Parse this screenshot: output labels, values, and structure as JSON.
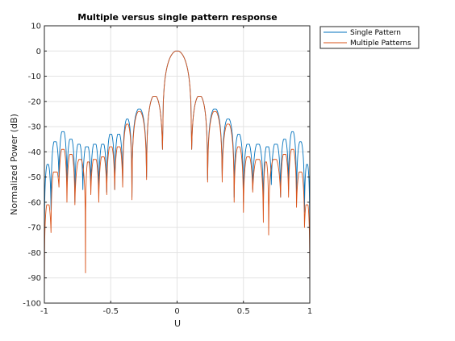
{
  "chart_data": {
    "type": "line",
    "title": "Multiple versus single pattern response",
    "xlabel": "U",
    "ylabel": "Normalized Power (dB)",
    "xlim": [
      -1,
      1
    ],
    "ylim": [
      -100,
      10
    ],
    "xticks": [
      -1,
      -0.5,
      0,
      0.5,
      1
    ],
    "xtick_labels": [
      "-1",
      "-0.5",
      "0",
      "0.5",
      "1"
    ],
    "yticks": [
      10,
      0,
      -10,
      -20,
      -30,
      -40,
      -50,
      -60,
      -70,
      -80,
      -90,
      -100
    ],
    "ytick_labels": [
      "10",
      "0",
      "-10",
      "-20",
      "-30",
      "-40",
      "-50",
      "-60",
      "-70",
      "-80",
      "-90",
      "-100"
    ],
    "grid": true,
    "legend_position": "outside-top-right",
    "series": [
      {
        "name": "Single Pattern",
        "color": "#0072BD",
        "nulls": [
          -1.0,
          -0.95,
          -0.89,
          -0.83,
          -0.77,
          -0.71,
          -0.65,
          -0.59,
          -0.53,
          -0.47,
          -0.41,
          -0.34,
          -0.23,
          -0.11,
          0.11,
          0.23,
          0.34,
          0.43,
          0.5,
          0.57,
          0.65,
          0.71,
          0.78,
          0.84,
          0.9,
          0.96,
          1.0
        ],
        "null_depths": [
          -100,
          -63,
          -50,
          -52,
          -60,
          -55,
          -53,
          -57,
          -56,
          -55,
          -53,
          -58,
          -50,
          -39,
          -39,
          -51,
          -50,
          -58,
          -60,
          -55,
          -63,
          -53,
          -58,
          -55,
          -60,
          -64,
          -100
        ],
        "peaks": [
          0.0,
          0.17,
          0.28,
          0.38,
          0.46,
          0.54,
          0.61,
          0.68,
          0.74,
          0.81,
          0.87,
          0.93,
          0.98
        ],
        "peak_levels": [
          0,
          -18,
          -23,
          -27,
          -33,
          -37,
          -37,
          -38,
          -37,
          -35,
          -32,
          -36,
          -45
        ]
      },
      {
        "name": "Multiple Patterns",
        "color": "#D95319",
        "nulls": [
          -1.0,
          -0.95,
          -0.89,
          -0.83,
          -0.77,
          -0.69,
          -0.65,
          -0.59,
          -0.53,
          -0.47,
          -0.41,
          -0.34,
          -0.23,
          -0.11,
          0.11,
          0.23,
          0.34,
          0.43,
          0.5,
          0.57,
          0.65,
          0.69,
          0.78,
          0.84,
          0.9,
          0.96,
          1.0
        ],
        "null_depths": [
          -100,
          -72,
          -54,
          -60,
          -61,
          -88,
          -57,
          -60,
          -57,
          -55,
          -54,
          -59,
          -51,
          -39,
          -39,
          -52,
          -52,
          -60,
          -64,
          -56,
          -68,
          -73,
          -58,
          -58,
          -62,
          -70,
          -100
        ],
        "peaks": [
          0.0,
          0.17,
          0.28,
          0.38,
          0.46,
          0.54,
          0.61,
          0.68,
          0.74,
          0.81,
          0.87,
          0.93,
          0.98
        ],
        "peak_levels": [
          0,
          -18,
          -24,
          -29,
          -38,
          -42,
          -43,
          -44,
          -43,
          -41,
          -39,
          -48,
          -61
        ]
      }
    ]
  }
}
